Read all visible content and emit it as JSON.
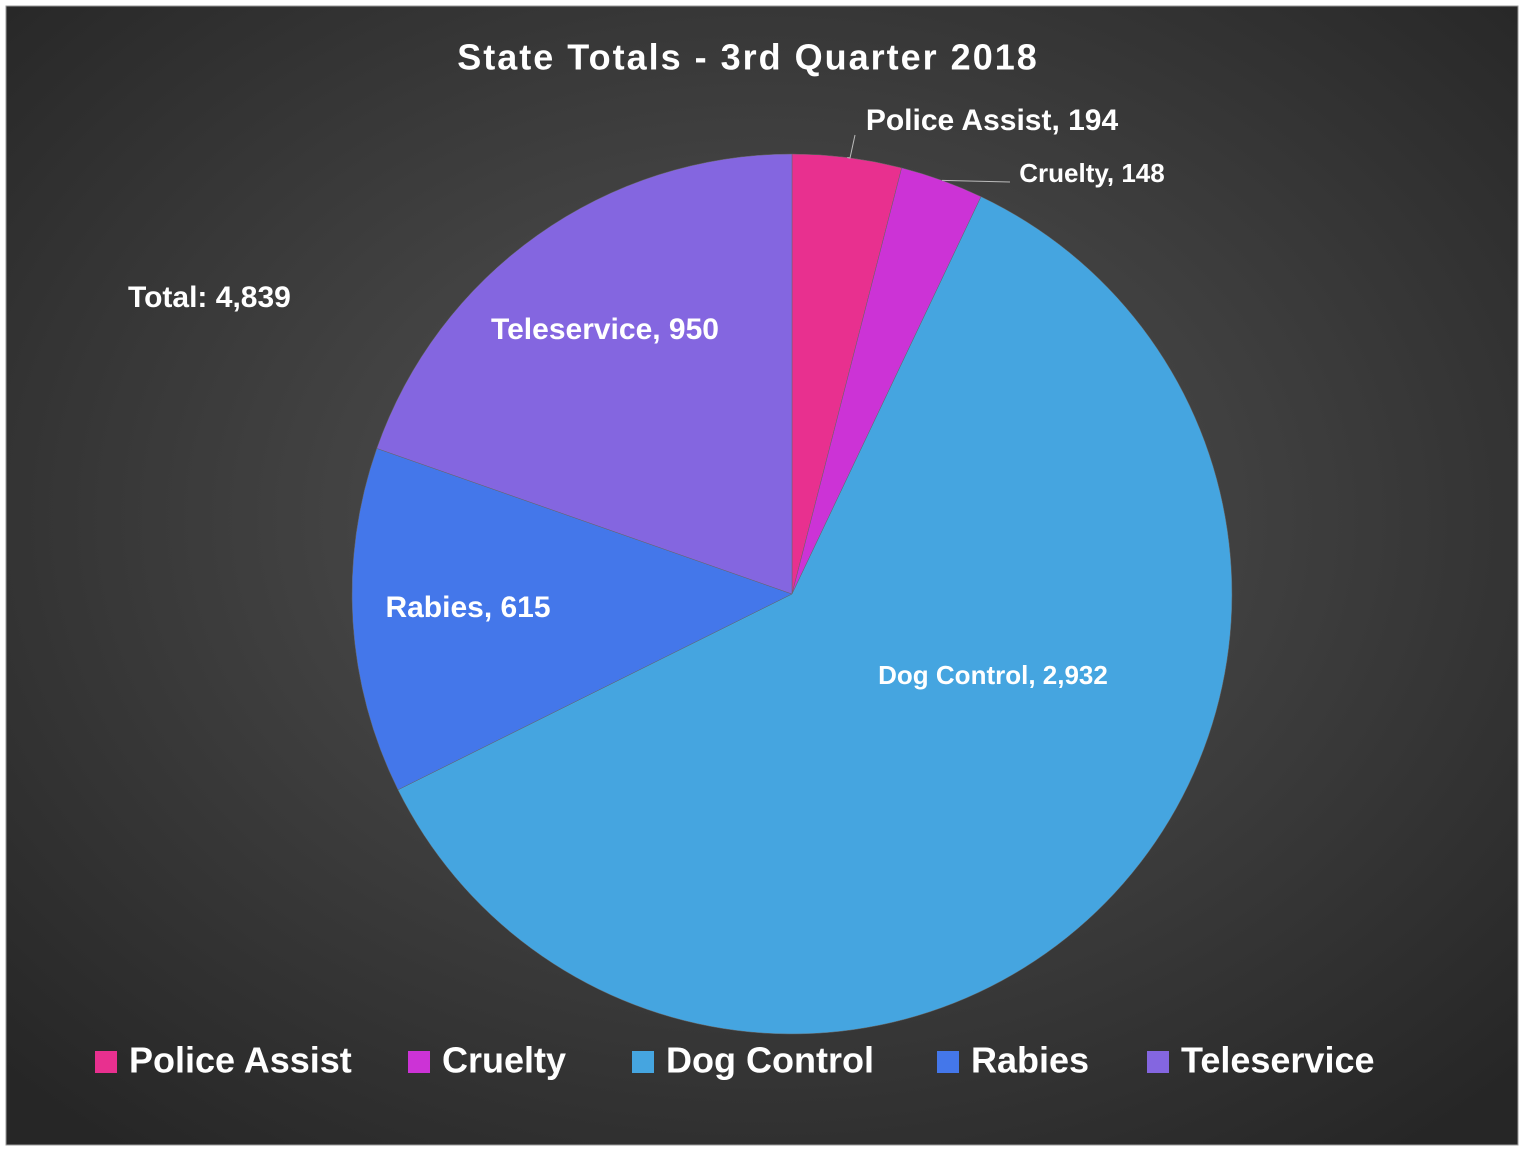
{
  "chart_data": {
    "type": "pie",
    "title": "State Totals - 3rd Quarter 2018",
    "annotation": "Total:  4,839",
    "categories": [
      "Police Assist",
      "Cruelty",
      "Dog Control",
      "Rabies",
      "Teleservice"
    ],
    "values": [
      194,
      148,
      2932,
      615,
      950
    ],
    "value_labels": [
      "Police Assist, 194",
      "Cruelty, 148",
      "Dog Control, 2,932",
      "Rabies, 615",
      "Teleservice, 950"
    ],
    "colors": [
      "#e8308f",
      "#cc33d6",
      "#45a5e0",
      "#4477ea",
      "#8466e0"
    ],
    "legend": "bottom"
  }
}
